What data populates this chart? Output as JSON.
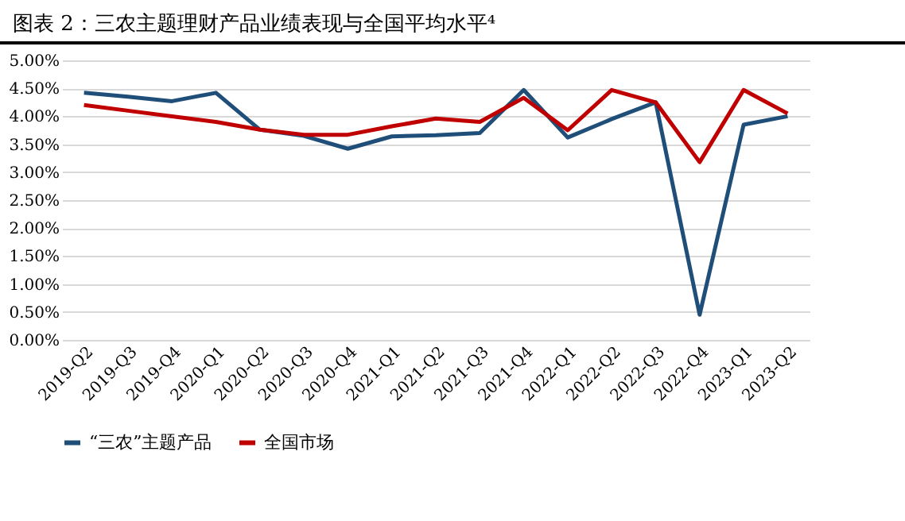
{
  "chart_data": {
    "type": "line",
    "title": "图表 2：三农主题理财产品业绩表现与全国平均水平⁴",
    "categories": [
      "2019-Q2",
      "2019-Q3",
      "2019-Q4",
      "2020-Q1",
      "2020-Q2",
      "2020-Q3",
      "2020-Q4",
      "2021-Q1",
      "2021-Q2",
      "2021-Q3",
      "2021-Q4",
      "2022-Q1",
      "2022-Q2",
      "2022-Q3",
      "2022-Q4",
      "2023-Q1",
      "2023-Q2"
    ],
    "series": [
      {
        "name": "“三农”主题产品",
        "color": "#1f4e79",
        "values": [
          4.42,
          4.35,
          4.27,
          4.42,
          3.76,
          3.65,
          3.42,
          3.64,
          3.66,
          3.7,
          4.47,
          3.62,
          3.95,
          4.25,
          0.45,
          3.85,
          4.0
        ]
      },
      {
        "name": "全国市场",
        "color": "#c00000",
        "values": [
          4.2,
          4.1,
          4.0,
          3.9,
          3.76,
          3.67,
          3.67,
          3.82,
          3.96,
          3.9,
          4.33,
          3.75,
          4.47,
          4.25,
          3.18,
          4.47,
          4.05
        ]
      }
    ],
    "ylim": [
      0,
      5
    ],
    "yticks": [
      {
        "value": 0,
        "label": "0.00%"
      },
      {
        "value": 0.5,
        "label": "0.50%"
      },
      {
        "value": 1,
        "label": "1.00%"
      },
      {
        "value": 1.5,
        "label": "1.50%"
      },
      {
        "value": 2,
        "label": "2.00%"
      },
      {
        "value": 2.5,
        "label": "2.50%"
      },
      {
        "value": 3,
        "label": "3.00%"
      },
      {
        "value": 3.5,
        "label": "3.50%"
      },
      {
        "value": 4,
        "label": "4.00%"
      },
      {
        "value": 4.5,
        "label": "4.50%"
      },
      {
        "value": 5,
        "label": "5.00%"
      }
    ],
    "grid": "y",
    "legend": "bottom",
    "marker": "none",
    "line_style": "solid"
  }
}
